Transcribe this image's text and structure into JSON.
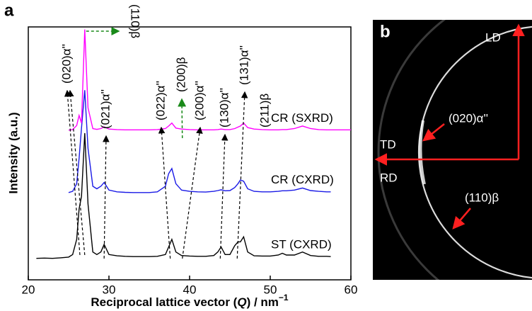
{
  "chart_data": {
    "type": "line",
    "panel_label": "a",
    "x_label": [
      "Reciprocal lattice vector (",
      "Q",
      ") / nm",
      "−1"
    ],
    "y_label": "Intensity (a.u.)",
    "x": [
      21,
      22,
      23,
      24,
      25,
      25.5,
      26,
      26.3,
      26.6,
      27,
      27.4,
      28,
      28.5,
      29,
      29.4,
      30,
      31,
      32,
      33,
      34,
      35,
      36,
      37,
      37.4,
      37.8,
      38.3,
      39,
      40,
      41,
      42,
      43,
      43.5,
      43.9,
      44.4,
      45,
      45.6,
      46,
      46.3,
      46.7,
      47.2,
      48,
      49,
      50,
      51,
      51.5,
      52,
      53,
      54,
      55,
      56,
      57,
      57.5,
      58,
      59,
      60
    ],
    "series": [
      {
        "name": "ST (CXRD)",
        "color": "#000000",
        "values": [
          8.5,
          8.6,
          8.5,
          8.7,
          9,
          10,
          16,
          28,
          33,
          58,
          30,
          11,
          10,
          11,
          14,
          10,
          9.5,
          9.3,
          9.2,
          9.2,
          9.2,
          9.3,
          10,
          13,
          16,
          11,
          9.6,
          9.4,
          9.3,
          9.3,
          9.6,
          11,
          13,
          10,
          10,
          13.5,
          15,
          15,
          17,
          11,
          9.5,
          9.4,
          9.4,
          9.8,
          10.5,
          9.8,
          9.8,
          11,
          9.6,
          9.3,
          9.3,
          9.2,
          null,
          null,
          null
        ]
      },
      {
        "name": "CR (CXRD)",
        "color": "#1a1ae6",
        "values": [
          null,
          null,
          null,
          null,
          34.5,
          35,
          38,
          48,
          60,
          75,
          52,
          37,
          36,
          37,
          38.5,
          35.5,
          34.8,
          34.6,
          34.5,
          34.5,
          34.5,
          34.8,
          37,
          42,
          44,
          38,
          35.5,
          35,
          34.8,
          34.7,
          35,
          35.3,
          35.6,
          35.2,
          35.3,
          36.5,
          38,
          39.5,
          39,
          36,
          35,
          34.8,
          34.8,
          35,
          35.2,
          35.2,
          35.5,
          36.3,
          35.3,
          35,
          34.8,
          34.8,
          null,
          null,
          null
        ]
      },
      {
        "name": "CR (SXRD)",
        "color": "#ff00ff",
        "values": [
          null,
          null,
          null,
          null,
          59.2,
          59.4,
          61,
          65,
          62,
          99,
          68,
          59.8,
          59.5,
          59.8,
          60.5,
          59.6,
          59.4,
          59.3,
          59.3,
          59.3,
          59.3,
          59.4,
          59.8,
          60.8,
          62,
          60,
          59.6,
          59.4,
          59.3,
          59.3,
          59.3,
          59.4,
          59.6,
          59.4,
          59.4,
          59.8,
          60.4,
          60.8,
          62,
          60.2,
          59.6,
          59.4,
          59.3,
          59.3,
          59.4,
          59.4,
          59.8,
          60.8,
          59.8,
          59.4,
          59.3,
          59.3,
          59.3,
          59.3,
          59.3
        ]
      }
    ],
    "xlim": [
      20,
      60
    ],
    "xticks": [
      20,
      30,
      40,
      50,
      60
    ],
    "ylim": [
      0,
      100
    ],
    "annotations": [
      {
        "text": "(020)α''",
        "x": 26.4
      },
      {
        "text": "(110)β",
        "x": 27.0
      },
      {
        "text": "(021)α''",
        "x": 29.4
      },
      {
        "text": "(022)α''",
        "x": 37.6
      },
      {
        "text": "(200)β",
        "x": 38.6
      },
      {
        "text": "(200)α''",
        "x": 39.1
      },
      {
        "text": "(130)α''",
        "x": 43.8
      },
      {
        "text": "(131)α''",
        "x": 45.9
      },
      {
        "text": "(211)β",
        "x": 46.8
      }
    ]
  },
  "image_panel": {
    "label": "b",
    "texts": [
      "LD",
      "TD",
      "RD",
      "(020)α''",
      "(110)β"
    ]
  }
}
